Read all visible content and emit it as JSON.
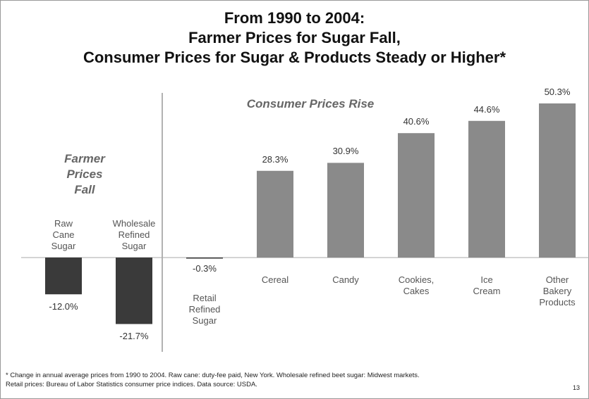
{
  "chart_data": {
    "type": "bar",
    "title": "From 1990 to 2004:\nFarmer Prices for Sugar Fall,\nConsumer Prices for Sugar & Products Steady or Higher*",
    "categories": [
      "Raw\nCane\nSugar",
      "Wholesale\nRefined\nSugar",
      "Retail\nRefined\nSugar",
      "Cereal",
      "Candy",
      "Cookies,\nCakes",
      "Ice\nCream",
      "Other\nBakery\nProducts"
    ],
    "values": [
      -12.0,
      -21.7,
      -0.3,
      28.3,
      30.9,
      40.6,
      44.6,
      50.3
    ],
    "value_labels": [
      "-12.0%",
      "-21.7%",
      "-0.3%",
      "28.3%",
      "30.9%",
      "40.6%",
      "44.6%",
      "50.3%"
    ],
    "colors": [
      "#3a3a3a",
      "#3a3a3a",
      "#3a3a3a",
      "#8a8a8a",
      "#8a8a8a",
      "#8a8a8a",
      "#8a8a8a",
      "#8a8a8a"
    ],
    "ylim": [
      -30,
      55
    ],
    "annotations": [
      "Farmer\nPrices\nFall",
      "Consumer Prices Rise"
    ],
    "footnote": "* Change in annual average prices from 1990 to 2004.  Raw cane: duty-fee paid, New York.  Wholesale refined beet sugar: Midwest markets.\nRetail prices: Bureau of Labor Statistics consumer price indices.  Data source: USDA.",
    "page_number": "13"
  }
}
